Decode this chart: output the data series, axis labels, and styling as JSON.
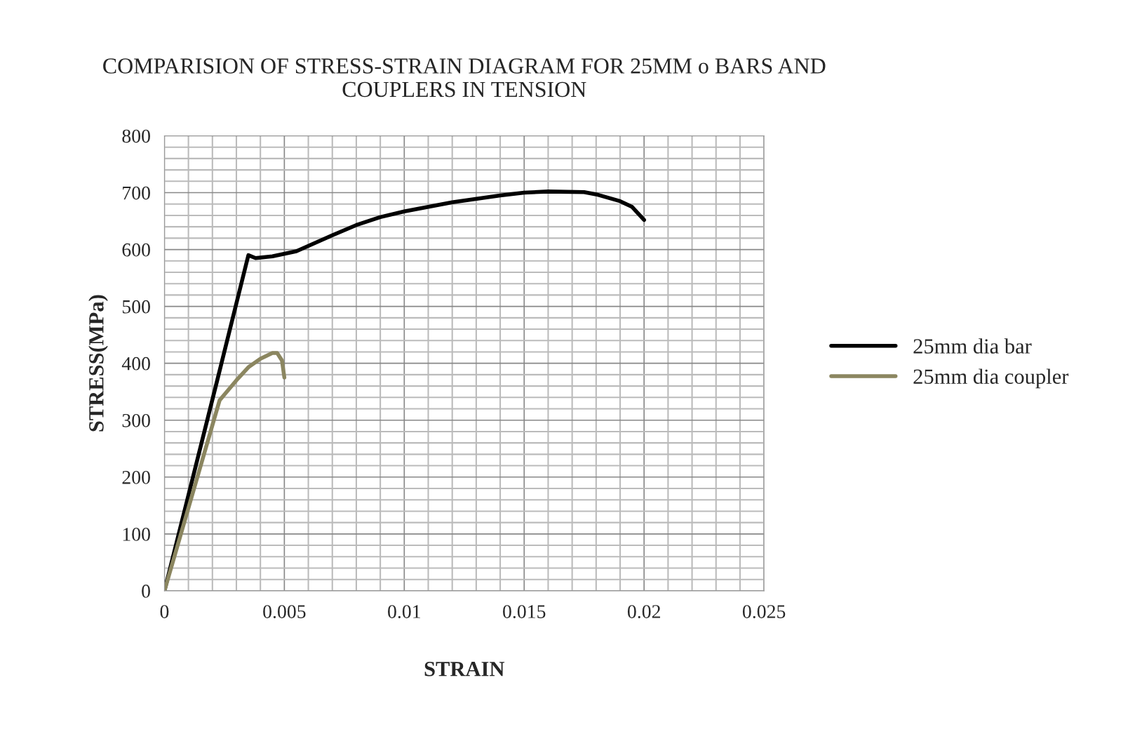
{
  "chart_data": {
    "type": "line",
    "title": "COMPARISION OF STRESS-STRAIN DIAGRAM FOR 25MM o BARS AND\nCOUPLERS IN TENSION",
    "xlabel": "STRAIN",
    "ylabel": "STRESS(MPa)",
    "xlim": [
      0,
      0.025
    ],
    "xticks": [
      0,
      0.005,
      0.01,
      0.015,
      0.02,
      0.025
    ],
    "ylim": [
      0,
      800
    ],
    "yticks": [
      0,
      100,
      200,
      300,
      400,
      500,
      600,
      700,
      800
    ],
    "grid": true,
    "legend": "right",
    "marker": "none",
    "line_style": "solid",
    "series": [
      {
        "name": "25mm dia bar",
        "color": "#000000",
        "x": [
          0,
          0.0022,
          0.0035,
          0.0038,
          0.0045,
          0.0055,
          0.007,
          0.008,
          0.009,
          0.01,
          0.012,
          0.014,
          0.015,
          0.016,
          0.0175,
          0.018,
          0.019,
          0.0195,
          0.02
        ],
        "values": [
          0,
          370,
          590,
          585,
          588,
          597,
          625,
          643,
          657,
          667,
          683,
          695,
          700,
          702,
          701,
          697,
          685,
          675,
          652
        ]
      },
      {
        "name": "25mm dia coupler",
        "color": "#8b8660",
        "x": [
          0,
          0.0023,
          0.0025,
          0.003,
          0.0035,
          0.004,
          0.0045,
          0.0047,
          0.0049,
          0.005
        ],
        "values": [
          0,
          335,
          345,
          370,
          393,
          408,
          418,
          418,
          405,
          375
        ]
      }
    ]
  }
}
